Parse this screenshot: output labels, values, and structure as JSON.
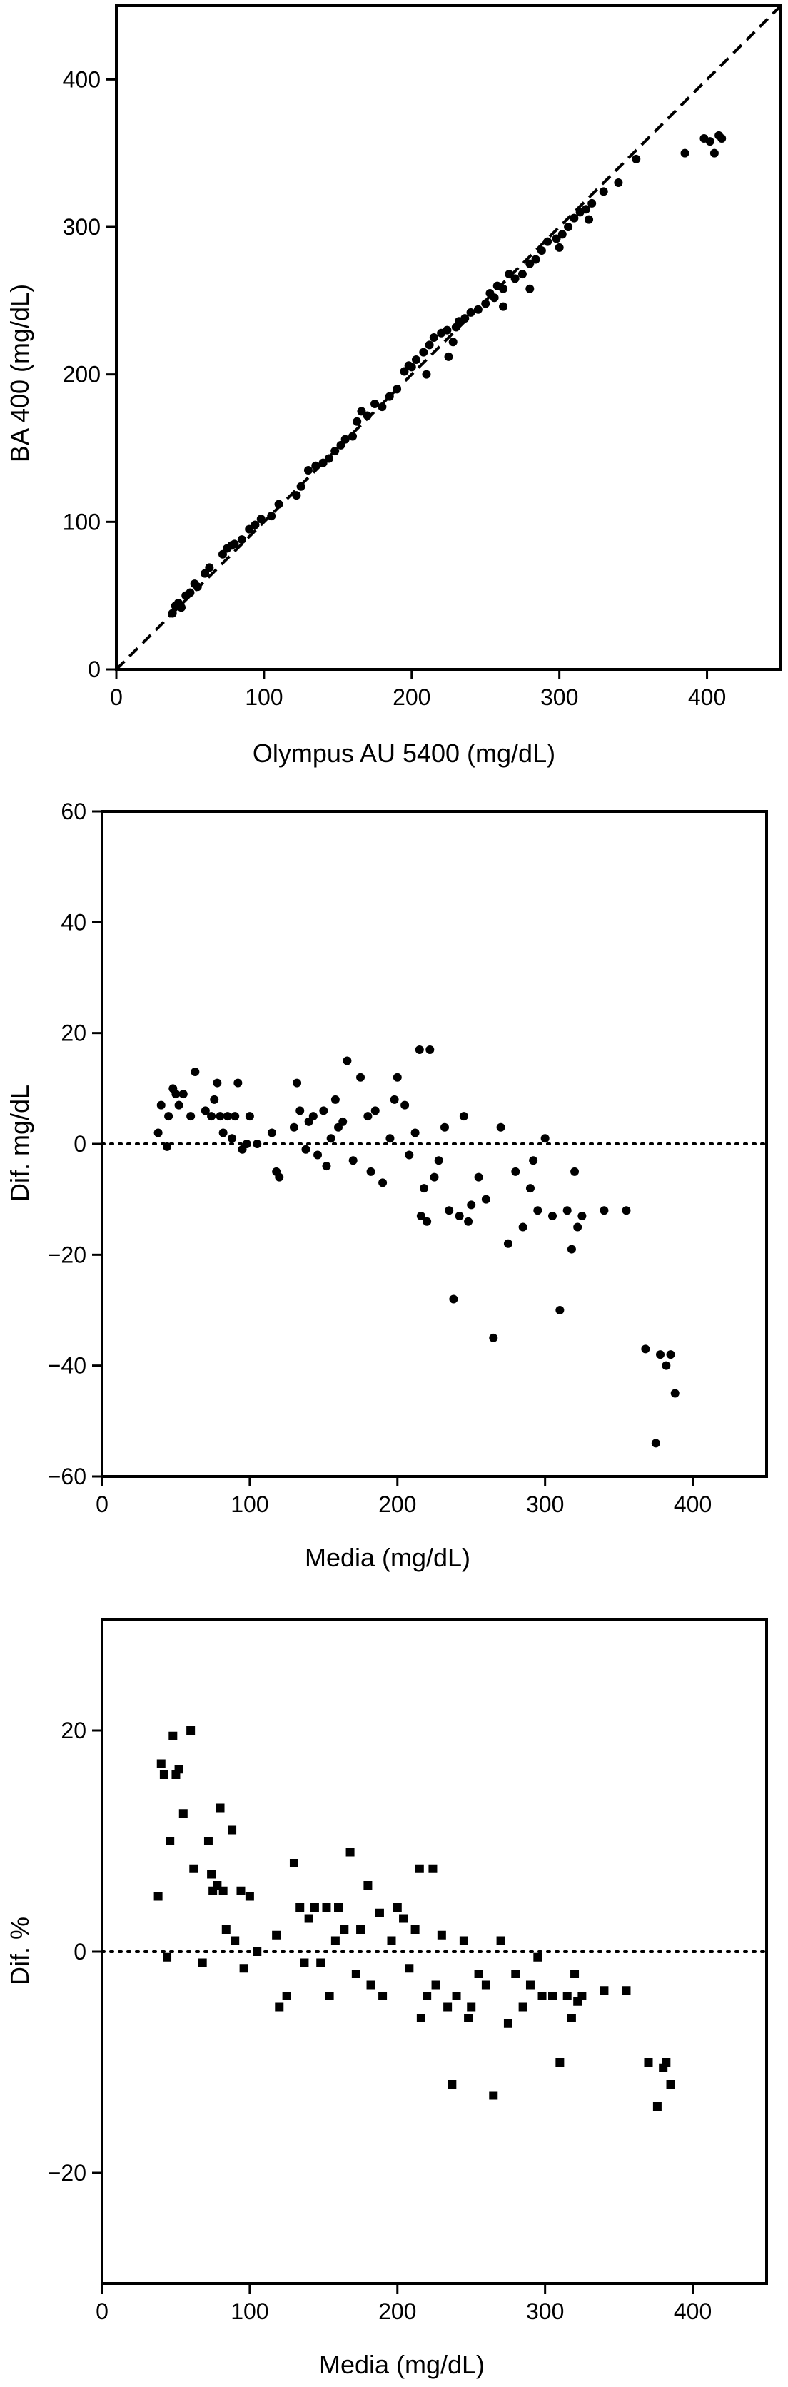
{
  "chart_data": [
    {
      "type": "scatter",
      "title": "",
      "xlabel": "Olympus AU 5400 (mg/dL)",
      "ylabel": "BA  400 (mg/dL)",
      "xlim": [
        0,
        450
      ],
      "ylim": [
        0,
        450
      ],
      "xticks": [
        0,
        100,
        200,
        300,
        400
      ],
      "yticks": [
        0,
        100,
        200,
        300,
        400
      ],
      "grid": false,
      "marker": "circle",
      "reference_line": {
        "style": "dashed",
        "x": [
          0,
          450
        ],
        "y": [
          0,
          450
        ]
      },
      "series": [
        {
          "points": [
            [
              38,
              38
            ],
            [
              40,
              43
            ],
            [
              42,
              45
            ],
            [
              44,
              42
            ],
            [
              47,
              50
            ],
            [
              50,
              52
            ],
            [
              53,
              58
            ],
            [
              55,
              56
            ],
            [
              60,
              65
            ],
            [
              63,
              69
            ],
            [
              72,
              78
            ],
            [
              75,
              82
            ],
            [
              78,
              84
            ],
            [
              80,
              85
            ],
            [
              85,
              88
            ],
            [
              90,
              95
            ],
            [
              94,
              98
            ],
            [
              98,
              102
            ],
            [
              105,
              104
            ],
            [
              110,
              112
            ],
            [
              122,
              118
            ],
            [
              125,
              124
            ],
            [
              130,
              135
            ],
            [
              135,
              138
            ],
            [
              140,
              140
            ],
            [
              144,
              143
            ],
            [
              148,
              148
            ],
            [
              152,
              152
            ],
            [
              155,
              156
            ],
            [
              160,
              158
            ],
            [
              163,
              168
            ],
            [
              166,
              175
            ],
            [
              170,
              172
            ],
            [
              175,
              180
            ],
            [
              180,
              178
            ],
            [
              185,
              185
            ],
            [
              190,
              190
            ],
            [
              195,
              202
            ],
            [
              198,
              206
            ],
            [
              200,
              205
            ],
            [
              203,
              210
            ],
            [
              208,
              215
            ],
            [
              212,
              220
            ],
            [
              215,
              225
            ],
            [
              220,
              228
            ],
            [
              224,
              230
            ],
            [
              228,
              222
            ],
            [
              230,
              232
            ],
            [
              232,
              236
            ],
            [
              236,
              238
            ],
            [
              240,
              242
            ],
            [
              245,
              244
            ],
            [
              250,
              248
            ],
            [
              253,
              255
            ],
            [
              256,
              252
            ],
            [
              258,
              260
            ],
            [
              262,
              258
            ],
            [
              266,
              268
            ],
            [
              270,
              265
            ],
            [
              275,
              268
            ],
            [
              280,
              275
            ],
            [
              284,
              278
            ],
            [
              288,
              284
            ],
            [
              292,
              290
            ],
            [
              298,
              292
            ],
            [
              302,
              295
            ],
            [
              306,
              300
            ],
            [
              310,
              306
            ],
            [
              314,
              310
            ],
            [
              318,
              312
            ],
            [
              322,
              316
            ],
            [
              330,
              324
            ],
            [
              340,
              330
            ],
            [
              352,
              346
            ],
            [
              262,
              246
            ],
            [
              210,
              200
            ],
            [
              225,
              212
            ],
            [
              280,
              258
            ],
            [
              300,
              286
            ],
            [
              320,
              305
            ],
            [
              385,
              350
            ],
            [
              398,
              360
            ],
            [
              402,
              358
            ],
            [
              405,
              350
            ],
            [
              408,
              362
            ],
            [
              410,
              360
            ]
          ]
        }
      ]
    },
    {
      "type": "scatter",
      "title": "",
      "xlabel": "Media (mg/dL)",
      "ylabel": "Dif. mg/dL",
      "xlim": [
        0,
        450
      ],
      "ylim": [
        -60,
        60
      ],
      "xticks": [
        0,
        100,
        200,
        300,
        400
      ],
      "yticks": [
        -60,
        -40,
        -20,
        0,
        20,
        40,
        60
      ],
      "grid": false,
      "marker": "circle",
      "reference_line": {
        "style": "dotted",
        "y": 0
      },
      "series": [
        {
          "points": [
            [
              38,
              2
            ],
            [
              40,
              7
            ],
            [
              44,
              -0.5
            ],
            [
              45,
              5
            ],
            [
              48,
              10
            ],
            [
              50,
              9
            ],
            [
              52,
              7
            ],
            [
              55,
              9
            ],
            [
              60,
              5
            ],
            [
              63,
              13
            ],
            [
              70,
              6
            ],
            [
              74,
              5
            ],
            [
              76,
              8
            ],
            [
              78,
              11
            ],
            [
              80,
              5
            ],
            [
              82,
              2
            ],
            [
              85,
              5
            ],
            [
              88,
              1
            ],
            [
              90,
              5
            ],
            [
              92,
              11
            ],
            [
              95,
              -1
            ],
            [
              98,
              0
            ],
            [
              100,
              5
            ],
            [
              105,
              0
            ],
            [
              115,
              2
            ],
            [
              118,
              -5
            ],
            [
              120,
              -6
            ],
            [
              130,
              3
            ],
            [
              132,
              11
            ],
            [
              134,
              6
            ],
            [
              138,
              -1
            ],
            [
              140,
              4
            ],
            [
              143,
              5
            ],
            [
              146,
              -2
            ],
            [
              150,
              6
            ],
            [
              152,
              -4
            ],
            [
              155,
              1
            ],
            [
              158,
              8
            ],
            [
              160,
              3
            ],
            [
              163,
              4
            ],
            [
              166,
              15
            ],
            [
              170,
              -3
            ],
            [
              175,
              12
            ],
            [
              180,
              5
            ],
            [
              182,
              -5
            ],
            [
              185,
              6
            ],
            [
              190,
              -7
            ],
            [
              195,
              1
            ],
            [
              198,
              8
            ],
            [
              200,
              12
            ],
            [
              205,
              7
            ],
            [
              208,
              -2
            ],
            [
              212,
              2
            ],
            [
              215,
              17
            ],
            [
              216,
              -13
            ],
            [
              218,
              -8
            ],
            [
              220,
              -14
            ],
            [
              222,
              17
            ],
            [
              225,
              -6
            ],
            [
              228,
              -3
            ],
            [
              232,
              3
            ],
            [
              235,
              -12
            ],
            [
              238,
              -28
            ],
            [
              242,
              -13
            ],
            [
              245,
              5
            ],
            [
              248,
              -14
            ],
            [
              250,
              -11
            ],
            [
              255,
              -6
            ],
            [
              260,
              -10
            ],
            [
              265,
              -35
            ],
            [
              270,
              3
            ],
            [
              275,
              -18
            ],
            [
              280,
              -5
            ],
            [
              285,
              -15
            ],
            [
              290,
              -8
            ],
            [
              292,
              -3
            ],
            [
              295,
              -12
            ],
            [
              300,
              1
            ],
            [
              305,
              -13
            ],
            [
              310,
              -30
            ],
            [
              315,
              -12
            ],
            [
              318,
              -19
            ],
            [
              320,
              -5
            ],
            [
              322,
              -15
            ],
            [
              325,
              -13
            ],
            [
              340,
              -12
            ],
            [
              355,
              -12
            ],
            [
              368,
              -37
            ],
            [
              375,
              -54
            ],
            [
              378,
              -38
            ],
            [
              382,
              -40
            ],
            [
              385,
              -38
            ],
            [
              388,
              -45
            ]
          ]
        }
      ]
    },
    {
      "type": "scatter",
      "title": "",
      "xlabel": "Media (mg/dL)",
      "ylabel": "Dif. %",
      "xlim": [
        0,
        450
      ],
      "ylim": [
        -30,
        30
      ],
      "xticks": [
        0,
        100,
        200,
        300,
        400
      ],
      "yticks": [
        -20,
        0,
        20
      ],
      "grid": false,
      "marker": "square",
      "reference_line": {
        "style": "dotted",
        "y": 0
      },
      "series": [
        {
          "points": [
            [
              38,
              5
            ],
            [
              40,
              17
            ],
            [
              42,
              16
            ],
            [
              44,
              -0.5
            ],
            [
              46,
              10
            ],
            [
              48,
              19.5
            ],
            [
              50,
              16
            ],
            [
              52,
              16.5
            ],
            [
              55,
              12.5
            ],
            [
              60,
              20
            ],
            [
              62,
              7.5
            ],
            [
              68,
              -1
            ],
            [
              72,
              10
            ],
            [
              74,
              7
            ],
            [
              75,
              5.5
            ],
            [
              78,
              6
            ],
            [
              80,
              13
            ],
            [
              82,
              5.5
            ],
            [
              84,
              2
            ],
            [
              88,
              11
            ],
            [
              90,
              1
            ],
            [
              94,
              5.5
            ],
            [
              96,
              -1.5
            ],
            [
              100,
              5
            ],
            [
              105,
              0
            ],
            [
              118,
              1.5
            ],
            [
              120,
              -5
            ],
            [
              125,
              -4
            ],
            [
              130,
              8
            ],
            [
              134,
              4
            ],
            [
              137,
              -1
            ],
            [
              140,
              3
            ],
            [
              144,
              4
            ],
            [
              148,
              -1
            ],
            [
              152,
              4
            ],
            [
              154,
              -4
            ],
            [
              158,
              1
            ],
            [
              160,
              4
            ],
            [
              164,
              2
            ],
            [
              168,
              9
            ],
            [
              172,
              -2
            ],
            [
              175,
              2
            ],
            [
              180,
              6
            ],
            [
              182,
              -3
            ],
            [
              188,
              3.5
            ],
            [
              190,
              -4
            ],
            [
              196,
              1
            ],
            [
              200,
              4
            ],
            [
              204,
              3
            ],
            [
              208,
              -1.5
            ],
            [
              212,
              2
            ],
            [
              215,
              7.5
            ],
            [
              216,
              -6
            ],
            [
              220,
              -4
            ],
            [
              224,
              7.5
            ],
            [
              226,
              -3
            ],
            [
              230,
              1.5
            ],
            [
              234,
              -5
            ],
            [
              237,
              -12
            ],
            [
              240,
              -4
            ],
            [
              245,
              1
            ],
            [
              248,
              -6
            ],
            [
              250,
              -5
            ],
            [
              255,
              -2
            ],
            [
              260,
              -3
            ],
            [
              265,
              -13
            ],
            [
              270,
              1
            ],
            [
              275,
              -6.5
            ],
            [
              280,
              -2
            ],
            [
              285,
              -5
            ],
            [
              290,
              -3
            ],
            [
              295,
              -0.5
            ],
            [
              298,
              -4
            ],
            [
              305,
              -4
            ],
            [
              310,
              -10
            ],
            [
              315,
              -4
            ],
            [
              318,
              -6
            ],
            [
              320,
              -2
            ],
            [
              322,
              -4.5
            ],
            [
              325,
              -4
            ],
            [
              340,
              -3.5
            ],
            [
              355,
              -3.5
            ],
            [
              370,
              -10
            ],
            [
              376,
              -14
            ],
            [
              380,
              -10.5
            ],
            [
              382,
              -10
            ],
            [
              385,
              -12
            ]
          ]
        }
      ]
    }
  ]
}
